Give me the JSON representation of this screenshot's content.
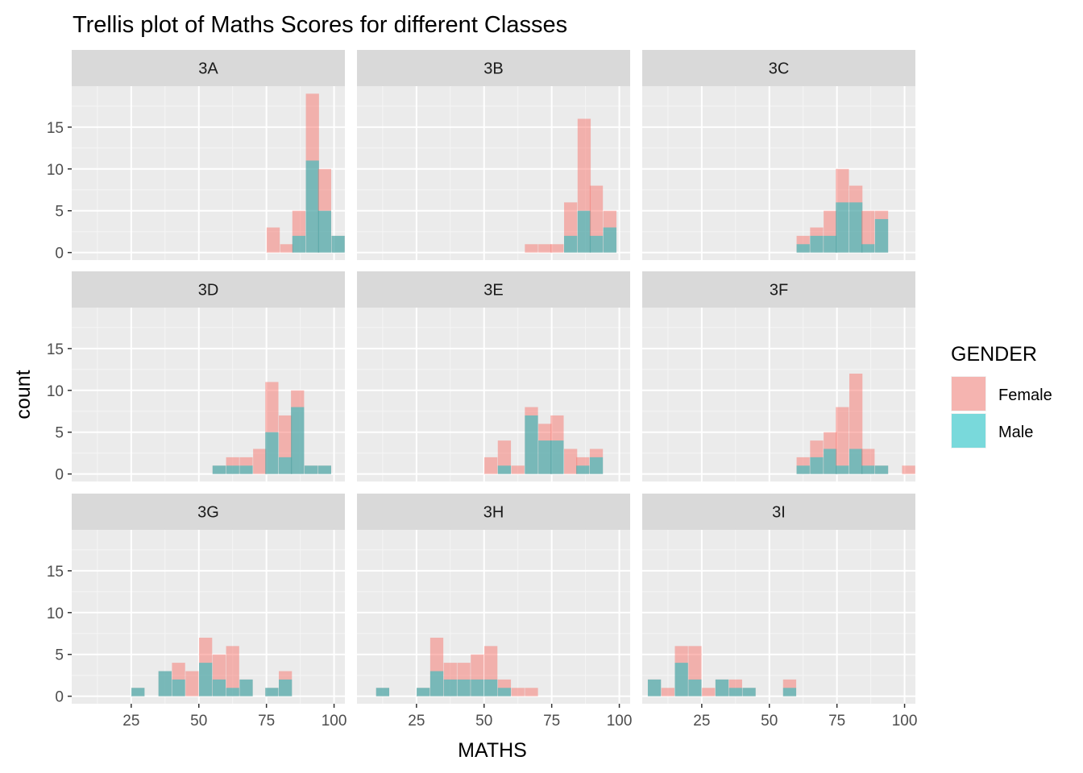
{
  "chart_data": {
    "type": "bar",
    "subtype": "faceted-stacked-histogram",
    "title": "Trellis plot of Maths Scores for different Classes",
    "xlabel": "MATHS",
    "ylabel": "count",
    "xlim": [
      3,
      104
    ],
    "ylim": [
      -0.9,
      19.9
    ],
    "xticks": [
      25,
      50,
      75,
      100
    ],
    "yticks": [
      0,
      5,
      10,
      15
    ],
    "bin_width": 4.85,
    "grid": true,
    "legend": {
      "title": "GENDER",
      "position": "right",
      "entries": [
        {
          "name": "Female",
          "color": "#F8766D"
        },
        {
          "name": "Male",
          "color": "#00BFC4"
        }
      ]
    },
    "facets": [
      {
        "label": "3A",
        "bins": [
          {
            "x": 77.5,
            "female": 3,
            "male": 0
          },
          {
            "x": 82.5,
            "female": 1,
            "male": 0
          },
          {
            "x": 87.0,
            "female": 3,
            "male": 2
          },
          {
            "x": 92.0,
            "female": 8,
            "male": 11
          },
          {
            "x": 96.5,
            "female": 5,
            "male": 5
          },
          {
            "x": 101.5,
            "female": 0,
            "male": 2
          }
        ]
      },
      {
        "label": "3B",
        "bins": [
          {
            "x": 67.5,
            "female": 1,
            "male": 0
          },
          {
            "x": 72.5,
            "female": 1,
            "male": 0
          },
          {
            "x": 77.0,
            "female": 1,
            "male": 0
          },
          {
            "x": 82.0,
            "female": 4,
            "male": 2
          },
          {
            "x": 87.0,
            "female": 11,
            "male": 5
          },
          {
            "x": 91.5,
            "female": 6,
            "male": 2
          },
          {
            "x": 96.5,
            "female": 2,
            "male": 3
          }
        ]
      },
      {
        "label": "3C",
        "bins": [
          {
            "x": 62.5,
            "female": 1,
            "male": 1
          },
          {
            "x": 67.5,
            "female": 1,
            "male": 2
          },
          {
            "x": 72.5,
            "female": 3,
            "male": 2
          },
          {
            "x": 77.0,
            "female": 4,
            "male": 6
          },
          {
            "x": 82.0,
            "female": 2,
            "male": 6
          },
          {
            "x": 86.5,
            "female": 4,
            "male": 1
          },
          {
            "x": 91.5,
            "female": 1,
            "male": 4
          }
        ]
      },
      {
        "label": "3D",
        "bins": [
          {
            "x": 57.5,
            "female": 0,
            "male": 1
          },
          {
            "x": 62.5,
            "female": 1,
            "male": 1
          },
          {
            "x": 67.5,
            "female": 1,
            "male": 1
          },
          {
            "x": 72.5,
            "female": 3,
            "male": 0
          },
          {
            "x": 77.0,
            "female": 6,
            "male": 5
          },
          {
            "x": 82.0,
            "female": 5,
            "male": 2
          },
          {
            "x": 86.5,
            "female": 2,
            "male": 8
          },
          {
            "x": 91.5,
            "female": 0,
            "male": 1
          },
          {
            "x": 96.5,
            "female": 0,
            "male": 1
          }
        ]
      },
      {
        "label": "3E",
        "bins": [
          {
            "x": 52.5,
            "female": 2,
            "male": 0
          },
          {
            "x": 57.5,
            "female": 3,
            "male": 1
          },
          {
            "x": 62.5,
            "female": 1,
            "male": 0
          },
          {
            "x": 67.5,
            "female": 1,
            "male": 7
          },
          {
            "x": 72.5,
            "female": 2,
            "male": 4
          },
          {
            "x": 77.0,
            "female": 3,
            "male": 4
          },
          {
            "x": 82.0,
            "female": 3,
            "male": 0
          },
          {
            "x": 86.5,
            "female": 1,
            "male": 1
          },
          {
            "x": 91.5,
            "female": 1,
            "male": 2
          }
        ]
      },
      {
        "label": "3F",
        "bins": [
          {
            "x": 62.5,
            "female": 1,
            "male": 1
          },
          {
            "x": 67.5,
            "female": 2,
            "male": 2
          },
          {
            "x": 72.5,
            "female": 2,
            "male": 3
          },
          {
            "x": 77.0,
            "female": 7,
            "male": 1
          },
          {
            "x": 82.0,
            "female": 9,
            "male": 3
          },
          {
            "x": 86.5,
            "female": 2,
            "male": 1
          },
          {
            "x": 91.5,
            "female": 0,
            "male": 1
          },
          {
            "x": 96.5,
            "female": 0,
            "male": 0
          },
          {
            "x": 101.5,
            "female": 1,
            "male": 0
          }
        ]
      },
      {
        "label": "3G",
        "bins": [
          {
            "x": 27.5,
            "female": 0,
            "male": 1
          },
          {
            "x": 37.5,
            "female": 0,
            "male": 3
          },
          {
            "x": 42.5,
            "female": 2,
            "male": 2
          },
          {
            "x": 47.5,
            "female": 3,
            "male": 0
          },
          {
            "x": 52.5,
            "female": 3,
            "male": 4
          },
          {
            "x": 57.5,
            "female": 3,
            "male": 2
          },
          {
            "x": 62.5,
            "female": 5,
            "male": 1
          },
          {
            "x": 67.5,
            "female": 0,
            "male": 2
          },
          {
            "x": 77.0,
            "female": 0,
            "male": 1
          },
          {
            "x": 82.0,
            "female": 1,
            "male": 2
          }
        ]
      },
      {
        "label": "3H",
        "bins": [
          {
            "x": 12.5,
            "female": 0,
            "male": 1
          },
          {
            "x": 27.5,
            "female": 0,
            "male": 1
          },
          {
            "x": 32.5,
            "female": 4,
            "male": 3
          },
          {
            "x": 37.5,
            "female": 2,
            "male": 2
          },
          {
            "x": 42.5,
            "female": 2,
            "male": 2
          },
          {
            "x": 47.5,
            "female": 3,
            "male": 2
          },
          {
            "x": 52.5,
            "female": 4,
            "male": 2
          },
          {
            "x": 57.5,
            "female": 1,
            "male": 1
          },
          {
            "x": 62.5,
            "female": 1,
            "male": 0
          },
          {
            "x": 67.5,
            "female": 1,
            "male": 0
          }
        ]
      },
      {
        "label": "3I",
        "bins": [
          {
            "x": 7.5,
            "female": 0,
            "male": 2
          },
          {
            "x": 12.5,
            "female": 1,
            "male": 0
          },
          {
            "x": 17.5,
            "female": 2,
            "male": 4
          },
          {
            "x": 22.5,
            "female": 4,
            "male": 2
          },
          {
            "x": 27.5,
            "female": 1,
            "male": 0
          },
          {
            "x": 32.5,
            "female": 0,
            "male": 2
          },
          {
            "x": 37.5,
            "female": 1,
            "male": 1
          },
          {
            "x": 42.5,
            "female": 0,
            "male": 1
          },
          {
            "x": 57.5,
            "female": 1,
            "male": 1
          }
        ]
      }
    ]
  }
}
